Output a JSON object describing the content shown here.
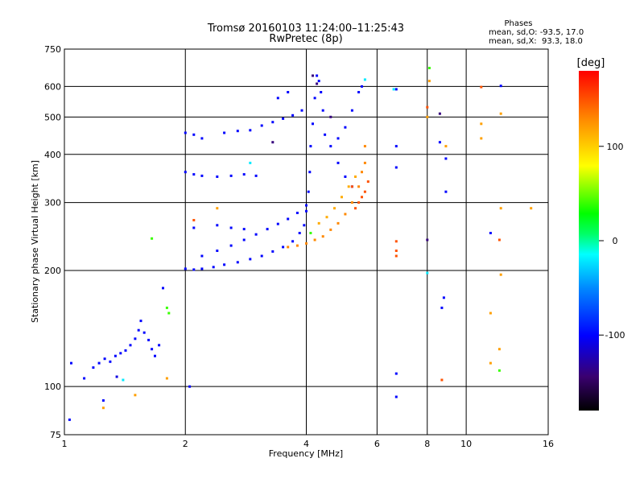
{
  "chart_data": {
    "type": "scatter",
    "title": "Tromsø 20160103 11:24:00–11:25:43",
    "subtitle": "RwPretec (8p)",
    "xlabel": "Frequency [MHz]",
    "ylabel": "Stationary phase Virtual Height [km]",
    "x_scale": "log",
    "y_scale": "log",
    "xlim": [
      1,
      16
    ],
    "ylim": [
      75,
      750
    ],
    "xticks": [
      1,
      2,
      4,
      6,
      8,
      10,
      16
    ],
    "xtick_labels": [
      "1",
      "2",
      "4",
      "6",
      "8",
      "10",
      "16"
    ],
    "yticks": [
      75,
      100,
      200,
      300,
      400,
      500,
      600,
      750
    ],
    "ytick_labels": [
      "75",
      "100",
      "200",
      "300",
      "400",
      "500",
      "600",
      "750"
    ],
    "grid": true,
    "phases": {
      "title": "Phases",
      "line_o": "mean, sd,O: -93.5, 17.0",
      "line_x": "mean, sd,X:  93.3, 18.0"
    },
    "colorbar": {
      "label": "[deg]",
      "range": [
        -180,
        180
      ],
      "ticks": [
        100,
        0,
        -100
      ],
      "tick_labels": [
        "100",
        "0",
        "-100"
      ]
    },
    "series": [
      {
        "points": [
          [
            1.04,
            115,
            -100
          ],
          [
            1.03,
            82,
            -100
          ],
          [
            1.12,
            105,
            -100
          ],
          [
            1.18,
            112,
            -100
          ],
          [
            1.22,
            115,
            -100
          ],
          [
            1.26,
            118,
            -100
          ],
          [
            1.3,
            116,
            -100
          ],
          [
            1.34,
            120,
            -100
          ],
          [
            1.38,
            122,
            -100
          ],
          [
            1.42,
            124,
            -100
          ],
          [
            1.46,
            128,
            -100
          ],
          [
            1.5,
            133,
            -100
          ],
          [
            1.53,
            140,
            -100
          ],
          [
            1.55,
            148,
            -100
          ],
          [
            1.58,
            138,
            -100
          ],
          [
            1.62,
            132,
            -100
          ],
          [
            1.65,
            125,
            -100
          ],
          [
            1.68,
            120,
            -100
          ],
          [
            1.72,
            128,
            -100
          ],
          [
            1.76,
            180,
            -100
          ],
          [
            1.35,
            106,
            -110
          ],
          [
            1.25,
            92,
            -100
          ],
          [
            2.05,
            100,
            -100
          ],
          [
            2.0,
            202,
            -100
          ],
          [
            2.1,
            201,
            -100
          ],
          [
            2.2,
            202,
            -100
          ],
          [
            2.35,
            204,
            -100
          ],
          [
            2.5,
            207,
            -100
          ],
          [
            2.7,
            210,
            -100
          ],
          [
            2.9,
            214,
            -100
          ],
          [
            3.1,
            218,
            -100
          ],
          [
            3.3,
            224,
            -100
          ],
          [
            3.5,
            230,
            -100
          ],
          [
            3.7,
            238,
            -100
          ],
          [
            3.85,
            250,
            -100
          ],
          [
            3.95,
            262,
            -100
          ],
          [
            4.0,
            285,
            -100
          ],
          [
            4.05,
            320,
            -100
          ],
          [
            4.08,
            360,
            -100
          ],
          [
            4.1,
            420,
            -100
          ],
          [
            4.15,
            480,
            -100
          ],
          [
            4.2,
            560,
            -100
          ],
          [
            4.25,
            640,
            -100
          ],
          [
            4.3,
            620,
            -100
          ],
          [
            4.35,
            580,
            -100
          ],
          [
            4.4,
            520,
            -100
          ],
          [
            4.45,
            450,
            -100
          ],
          [
            2.2,
            218,
            -100
          ],
          [
            2.4,
            225,
            -100
          ],
          [
            2.6,
            232,
            -100
          ],
          [
            2.8,
            240,
            -100
          ],
          [
            3.0,
            248,
            -100
          ],
          [
            3.2,
            256,
            -100
          ],
          [
            3.4,
            264,
            -100
          ],
          [
            3.6,
            272,
            -100
          ],
          [
            3.8,
            282,
            -100
          ],
          [
            4.0,
            295,
            -100
          ],
          [
            2.4,
            262,
            -100
          ],
          [
            2.6,
            258,
            -100
          ],
          [
            2.8,
            256,
            -100
          ],
          [
            2.1,
            258,
            -100
          ],
          [
            2.0,
            360,
            -100
          ],
          [
            2.1,
            355,
            -100
          ],
          [
            2.2,
            352,
            -100
          ],
          [
            2.4,
            350,
            -100
          ],
          [
            2.6,
            352,
            -100
          ],
          [
            2.8,
            355,
            -100
          ],
          [
            3.0,
            352,
            -100
          ],
          [
            2.0,
            455,
            -100
          ],
          [
            2.1,
            450,
            -100
          ],
          [
            2.2,
            440,
            -100
          ],
          [
            2.5,
            455,
            -100
          ],
          [
            2.7,
            460,
            -100
          ],
          [
            2.9,
            462,
            -100
          ],
          [
            3.1,
            475,
            -100
          ],
          [
            3.3,
            485,
            -100
          ],
          [
            3.5,
            495,
            -100
          ],
          [
            3.7,
            505,
            -100
          ],
          [
            3.9,
            520,
            -100
          ],
          [
            3.4,
            560,
            -100
          ],
          [
            3.6,
            580,
            -100
          ],
          [
            4.6,
            420,
            -100
          ],
          [
            4.8,
            440,
            -100
          ],
          [
            5.0,
            470,
            -100
          ],
          [
            5.2,
            520,
            -100
          ],
          [
            5.4,
            580,
            -100
          ],
          [
            5.5,
            600,
            -100
          ],
          [
            4.8,
            380,
            -100
          ],
          [
            5.0,
            350,
            -100
          ],
          [
            5.2,
            330,
            -100
          ],
          [
            6.7,
            590,
            -100
          ],
          [
            6.7,
            420,
            -100
          ],
          [
            6.7,
            370,
            -100
          ],
          [
            8.6,
            430,
            -100
          ],
          [
            8.9,
            390,
            -100
          ],
          [
            8.9,
            320,
            -100
          ],
          [
            8.8,
            170,
            -100
          ],
          [
            8.7,
            160,
            -100
          ],
          [
            6.7,
            94,
            -100
          ],
          [
            6.7,
            108,
            -100
          ],
          [
            12.2,
            602,
            -100
          ],
          [
            11.5,
            250,
            -100
          ]
        ]
      },
      {
        "points": [
          [
            3.6,
            230,
            130
          ],
          [
            3.8,
            232,
            130
          ],
          [
            4.0,
            235,
            130
          ],
          [
            4.2,
            240,
            130
          ],
          [
            4.4,
            245,
            130
          ],
          [
            4.6,
            255,
            130
          ],
          [
            4.8,
            265,
            130
          ],
          [
            5.0,
            280,
            130
          ],
          [
            5.2,
            300,
            130
          ],
          [
            5.4,
            330,
            130
          ],
          [
            5.5,
            360,
            130
          ],
          [
            5.6,
            380,
            130
          ],
          [
            5.6,
            420,
            130
          ],
          [
            4.3,
            265,
            115
          ],
          [
            4.5,
            275,
            115
          ],
          [
            4.7,
            290,
            115
          ],
          [
            4.9,
            310,
            115
          ],
          [
            5.1,
            330,
            115
          ],
          [
            5.3,
            350,
            115
          ],
          [
            1.8,
            105,
            120
          ],
          [
            1.5,
            95,
            120
          ],
          [
            1.25,
            88,
            120
          ],
          [
            2.4,
            290,
            120
          ],
          [
            8.1,
            620,
            120
          ],
          [
            8.0,
            500,
            120
          ],
          [
            8.9,
            420,
            120
          ],
          [
            10.9,
            480,
            120
          ],
          [
            10.9,
            440,
            120
          ],
          [
            12.2,
            510,
            120
          ],
          [
            12.2,
            290,
            120
          ],
          [
            14.5,
            290,
            120
          ],
          [
            11.5,
            155,
            120
          ],
          [
            11.5,
            115,
            120
          ],
          [
            12.1,
            125,
            120
          ],
          [
            12.2,
            195,
            120
          ]
        ]
      },
      {
        "points": [
          [
            5.2,
            330,
            150
          ],
          [
            5.4,
            300,
            150
          ],
          [
            5.6,
            320,
            150
          ],
          [
            5.7,
            340,
            150
          ],
          [
            5.5,
            310,
            150
          ],
          [
            5.3,
            290,
            150
          ],
          [
            6.7,
            238,
            150
          ],
          [
            6.7,
            225,
            150
          ],
          [
            6.7,
            218,
            150
          ],
          [
            8.0,
            530,
            150
          ],
          [
            8.7,
            104,
            150
          ],
          [
            10.9,
            598,
            150
          ],
          [
            12.1,
            240,
            150
          ],
          [
            2.1,
            270,
            150
          ]
        ]
      },
      {
        "points": [
          [
            1.8,
            160,
            40
          ],
          [
            1.82,
            155,
            40
          ],
          [
            1.65,
            242,
            40
          ],
          [
            8.1,
            670,
            40
          ],
          [
            12.1,
            110,
            40
          ],
          [
            4.1,
            250,
            40
          ]
        ]
      },
      {
        "points": [
          [
            1.4,
            104,
            -20
          ],
          [
            8.0,
            197,
            -20
          ],
          [
            5.6,
            625,
            -20
          ],
          [
            6.6,
            590,
            -20
          ],
          [
            2.9,
            380,
            -20
          ]
        ]
      },
      {
        "points": [
          [
            4.15,
            640,
            -140
          ],
          [
            4.25,
            610,
            -140
          ],
          [
            4.6,
            500,
            -140
          ],
          [
            8.0,
            240,
            -140
          ],
          [
            3.3,
            430,
            -140
          ],
          [
            8.6,
            510,
            -140
          ]
        ]
      }
    ]
  }
}
